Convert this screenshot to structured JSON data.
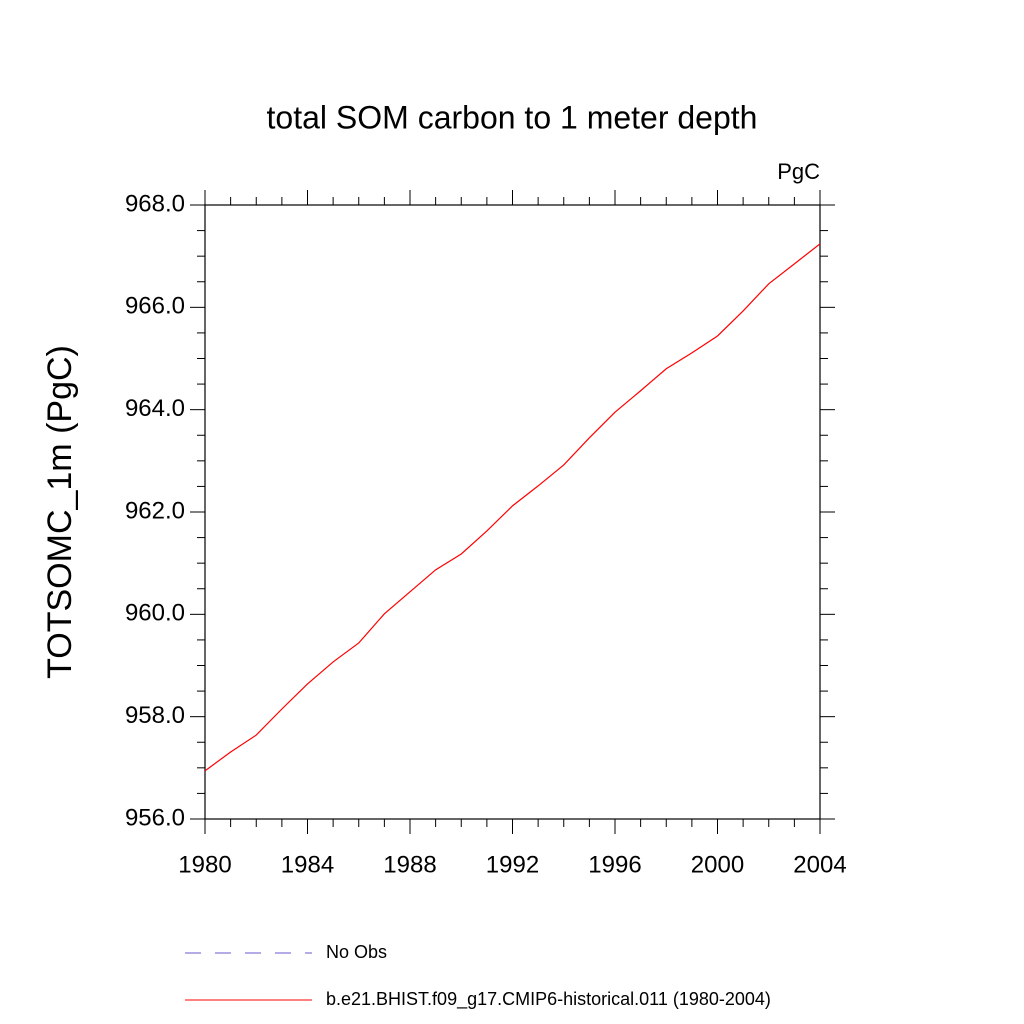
{
  "chart_data": {
    "type": "line",
    "title": "total SOM carbon to 1 meter depth",
    "units": "PgC",
    "y_label": "TOTSOMC_1m  (PgC)",
    "x": [
      1980,
      1981,
      1982,
      1983,
      1984,
      1985,
      1986,
      1987,
      1988,
      1989,
      1990,
      1991,
      1992,
      1993,
      1994,
      1995,
      1996,
      1997,
      1998,
      1999,
      2000,
      2001,
      2002,
      2003,
      2004
    ],
    "series": [
      {
        "name": "No Obs",
        "color": "#6a5acd",
        "dash": true,
        "values": [
          null,
          null,
          null,
          null,
          null,
          null,
          null,
          null,
          null,
          null,
          null,
          null,
          null,
          null,
          null,
          null,
          null,
          null,
          null,
          null,
          null,
          null,
          null,
          null,
          null
        ]
      },
      {
        "name": "b.e21.BHIST.f09_g17.CMIP6-historical.011 (1980-2004)",
        "color": "#ff0000",
        "dash": false,
        "values": [
          956.94,
          957.31,
          957.64,
          958.15,
          958.64,
          959.07,
          959.44,
          960.01,
          960.44,
          960.87,
          961.18,
          961.63,
          962.12,
          962.51,
          962.92,
          963.45,
          963.95,
          964.37,
          964.8,
          965.11,
          965.44,
          965.93,
          966.46,
          966.85,
          967.24
        ]
      }
    ],
    "xlim": [
      1980,
      2004
    ],
    "xticks": [
      1980,
      1984,
      1988,
      1992,
      1996,
      2000,
      2004
    ],
    "ylim": [
      956,
      968
    ],
    "yticks": [
      {
        "value": 956,
        "label": "956.0"
      },
      {
        "value": 958,
        "label": "958.0"
      },
      {
        "value": 960,
        "label": "960.0"
      },
      {
        "value": 962,
        "label": "962.0"
      },
      {
        "value": 964,
        "label": "964.0"
      },
      {
        "value": 966,
        "label": "966.0"
      },
      {
        "value": 968,
        "label": "968.0"
      }
    ]
  }
}
